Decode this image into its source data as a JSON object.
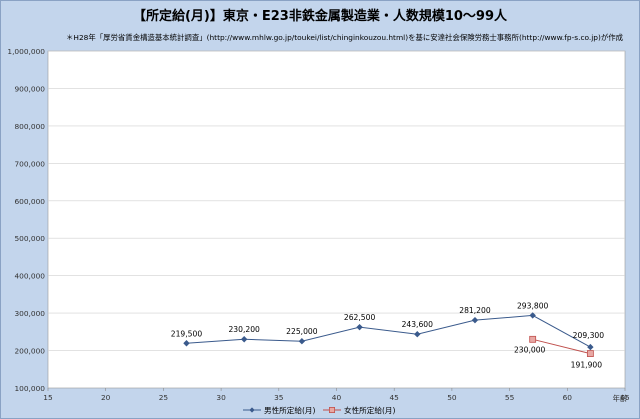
{
  "chart_data": {
    "type": "line",
    "title": "【所定給(月)】東京・E23非鉄金属製造業・人数規模10～99人",
    "subtitle": "＊H28年「厚労省賃金構造基本統計調査」(http://www.mhlw.go.jp/toukei/list/chinginkouzou.html)を基に安達社会保険労務士事務所(http://www.fp-s.co.jp)が作成",
    "xlabel": "年齢",
    "ylabel": "",
    "xlim": [
      15,
      65
    ],
    "ylim": [
      100000,
      1000000
    ],
    "x_ticks": [
      15,
      20,
      25,
      30,
      35,
      40,
      45,
      50,
      55,
      60,
      65
    ],
    "y_ticks": [
      100000,
      200000,
      300000,
      400000,
      500000,
      600000,
      700000,
      800000,
      900000,
      1000000
    ],
    "y_tick_labels": [
      "100,000",
      "200,000",
      "300,000",
      "400,000",
      "500,000",
      "600,000",
      "700,000",
      "800,000",
      "900,000",
      "1,000,000"
    ],
    "grid": "horizontal",
    "legend_position": "bottom",
    "series": [
      {
        "name": "男性所定給(月)",
        "color": "#3a5a8c",
        "marker": "diamond",
        "points": [
          {
            "x": 27,
            "y": 219500,
            "label": "219,500"
          },
          {
            "x": 32,
            "y": 230200,
            "label": "230,200"
          },
          {
            "x": 37,
            "y": 225000,
            "label": "225,000"
          },
          {
            "x": 42,
            "y": 262500,
            "label": "262,500"
          },
          {
            "x": 47,
            "y": 243600,
            "label": "243,600"
          },
          {
            "x": 52,
            "y": 281200,
            "label": "281,200"
          },
          {
            "x": 57,
            "y": 293800,
            "label": "293,800"
          },
          {
            "x": 62,
            "y": 209300,
            "label": "209,300"
          }
        ]
      },
      {
        "name": "女性所定給(月)",
        "color": "#c0504d",
        "marker": "square",
        "points": [
          {
            "x": 57,
            "y": 230000,
            "label": "230,000"
          },
          {
            "x": 62,
            "y": 191900,
            "label": "191,900"
          }
        ]
      }
    ]
  }
}
